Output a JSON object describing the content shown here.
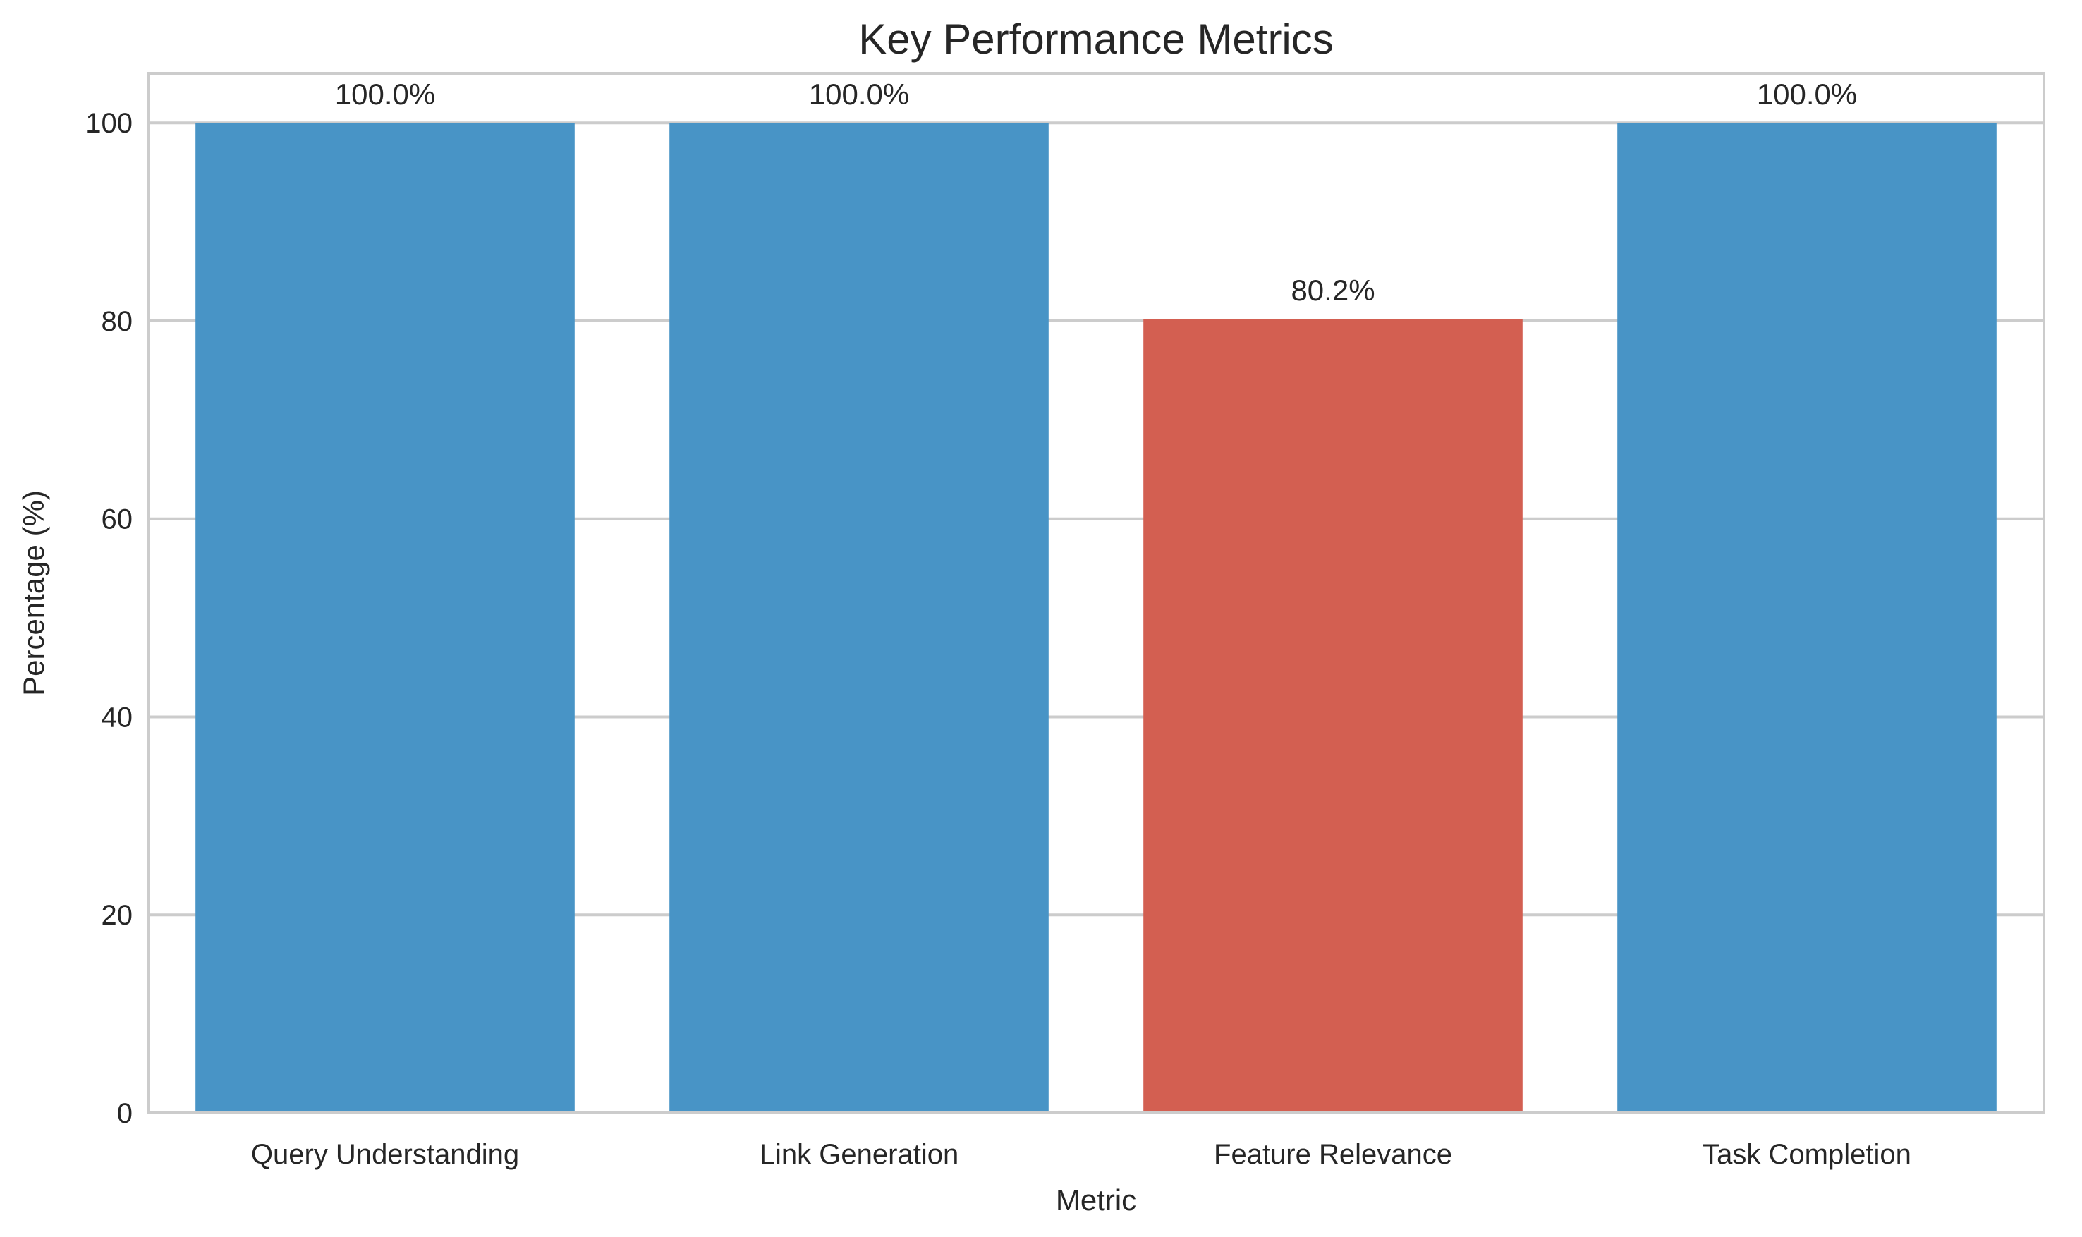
{
  "chart_data": {
    "type": "bar",
    "title": "Key Performance Metrics",
    "xlabel": "Metric",
    "ylabel": "Percentage (%)",
    "categories": [
      "Query Understanding",
      "Link Generation",
      "Feature Relevance",
      "Task Completion"
    ],
    "values": [
      100.0,
      100.0,
      80.2,
      100.0
    ],
    "value_labels": [
      "100.0%",
      "100.0%",
      "80.2%",
      "100.0%"
    ],
    "bar_colors": [
      "#4894c6",
      "#4894c6",
      "#d35f51",
      "#4894c6"
    ],
    "ylim": [
      0,
      105
    ],
    "yticks": [
      0,
      20,
      40,
      60,
      80,
      100
    ],
    "grid": true,
    "grid_color": "#cccccc",
    "frame_color": "#cccccc",
    "text_color": "#262626"
  }
}
